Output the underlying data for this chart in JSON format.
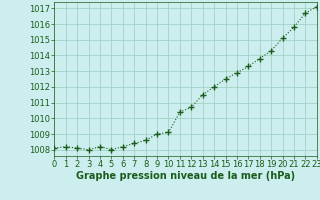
{
  "x": [
    0,
    1,
    2,
    3,
    4,
    5,
    6,
    7,
    8,
    9,
    10,
    11,
    12,
    13,
    14,
    15,
    16,
    17,
    18,
    19,
    20,
    21,
    22,
    23
  ],
  "y": [
    1008.1,
    1008.2,
    1008.1,
    1008.0,
    1008.2,
    1008.0,
    1008.2,
    1008.4,
    1008.6,
    1009.0,
    1009.1,
    1010.4,
    1010.7,
    1011.5,
    1012.0,
    1012.5,
    1012.9,
    1013.3,
    1013.8,
    1014.3,
    1015.1,
    1015.8,
    1016.7,
    1017.1
  ],
  "line_color": "#1a5c1a",
  "marker": "+",
  "marker_color": "#1a5c1a",
  "bg_color": "#cceeee",
  "grid_color": "#99ccbb",
  "xlabel": "Graphe pression niveau de la mer (hPa)",
  "xlabel_color": "#1a5c1a",
  "tick_color": "#1a5c1a",
  "ylim": [
    1007.6,
    1017.4
  ],
  "yticks": [
    1008,
    1009,
    1010,
    1011,
    1012,
    1013,
    1014,
    1015,
    1016,
    1017
  ],
  "xlim": [
    0,
    23
  ],
  "xticks": [
    0,
    1,
    2,
    3,
    4,
    5,
    6,
    7,
    8,
    9,
    10,
    11,
    12,
    13,
    14,
    15,
    16,
    17,
    18,
    19,
    20,
    21,
    22,
    23
  ],
  "linewidth": 0.8,
  "markersize": 4,
  "tick_fontsize": 6,
  "xlabel_fontsize": 7
}
